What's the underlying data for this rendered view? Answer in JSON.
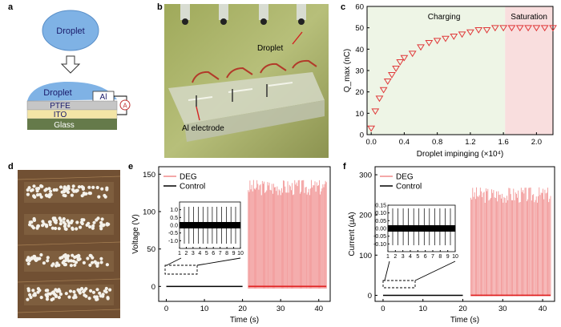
{
  "panels": {
    "a": {
      "letter": "a",
      "droplet_label": "Droplet",
      "droplet_on_surface_label": "Droplet",
      "al_label": "Al",
      "ptfe_label": "PTFE",
      "ito_label": "ITO",
      "glass_label": "Glass",
      "meter_label": "A",
      "colors": {
        "droplet": "#7fb2e5",
        "ptfe": "#c6c6c6",
        "ito": "#f3e5a6",
        "glass": "#657a4a"
      }
    },
    "b": {
      "letter": "b",
      "droplet_label": "Droplet",
      "electrode_label": "Al electrode"
    },
    "c": {
      "letter": "c",
      "charging_label": "Charging",
      "saturation_label": "Saturation",
      "colors": {
        "charging_bg": "#eef5e6",
        "saturation_bg": "#f9dede",
        "marker": "#e0393a"
      }
    },
    "d": {
      "letter": "d"
    },
    "e": {
      "letter": "e",
      "legend_deg": "DEG",
      "legend_control": "Control"
    },
    "f": {
      "letter": "f",
      "legend_deg": "DEG",
      "legend_control": "Control"
    }
  },
  "chart_data": [
    {
      "id": "c",
      "type": "scatter",
      "xlabel": "Droplet impinging (×10⁴)",
      "ylabel": "Q_max (nC)",
      "xlim": [
        -0.05,
        2.2
      ],
      "ylim": [
        0,
        60
      ],
      "xticks": [
        "0.0",
        "0.4",
        "0.8",
        "1.2",
        "1.6",
        "2.0"
      ],
      "yticks": [
        "0",
        "10",
        "20",
        "30",
        "40",
        "50",
        "60"
      ],
      "regions": [
        {
          "label": "Charging",
          "x": [
            -0.05,
            1.62
          ]
        },
        {
          "label": "Saturation",
          "x": [
            1.62,
            2.2
          ]
        }
      ],
      "x": [
        0.0,
        0.05,
        0.1,
        0.15,
        0.2,
        0.25,
        0.3,
        0.35,
        0.4,
        0.5,
        0.6,
        0.7,
        0.8,
        0.9,
        1.0,
        1.1,
        1.2,
        1.3,
        1.4,
        1.5,
        1.6,
        1.7,
        1.8,
        1.9,
        2.0,
        2.1,
        2.2
      ],
      "y": [
        3,
        11,
        17,
        21,
        25,
        28,
        31,
        34,
        36,
        38,
        41,
        43,
        44,
        45,
        46,
        47,
        48,
        49,
        49,
        50,
        50,
        50,
        50,
        50,
        50,
        50,
        50
      ]
    },
    {
      "id": "e",
      "type": "line",
      "xlabel": "Time (s)",
      "ylabel": "Voltage (V)",
      "xlim": [
        -2,
        43
      ],
      "ylim": [
        -20,
        160
      ],
      "xticks": [
        "0",
        "10",
        "20",
        "30",
        "40"
      ],
      "yticks": [
        "0",
        "50",
        "100",
        "150"
      ],
      "series": [
        {
          "name": "DEG",
          "x_range": [
            21.5,
            42
          ],
          "peak": 143,
          "trough": -3,
          "pulses": 90
        },
        {
          "name": "Control",
          "x_range": [
            0,
            20
          ],
          "value": 0
        }
      ],
      "inset": {
        "xlim": [
          1,
          10
        ],
        "ylim": [
          -1.5,
          1.5
        ],
        "xticks": [
          "1",
          "2",
          "3",
          "4",
          "5",
          "6",
          "7",
          "8",
          "9",
          "10"
        ],
        "yticks": [
          "-1.0",
          "-0.5",
          "0.0",
          "0.5",
          "1.0"
        ]
      }
    },
    {
      "id": "f",
      "type": "line",
      "xlabel": "Time (s)",
      "ylabel": "Current (µA)",
      "xlim": [
        -2,
        43
      ],
      "ylim": [
        -15,
        320
      ],
      "xticks": [
        "0",
        "10",
        "20",
        "30",
        "40"
      ],
      "yticks": [
        "0",
        "100",
        "200",
        "300"
      ],
      "series": [
        {
          "name": "DEG",
          "x_range": [
            22,
            42
          ],
          "peak": 270,
          "trough": -2,
          "pulses": 85
        },
        {
          "name": "Control",
          "x_range": [
            0,
            20
          ],
          "value": 0
        }
      ],
      "inset": {
        "xlim": [
          1,
          10
        ],
        "ylim": [
          -0.15,
          0.15
        ],
        "xticks": [
          "1",
          "2",
          "3",
          "4",
          "5",
          "6",
          "7",
          "8",
          "9",
          "10"
        ],
        "yticks": [
          "-0.10",
          "-0.05",
          "0.00",
          "0.05",
          "0.10",
          "0.15"
        ]
      }
    }
  ]
}
